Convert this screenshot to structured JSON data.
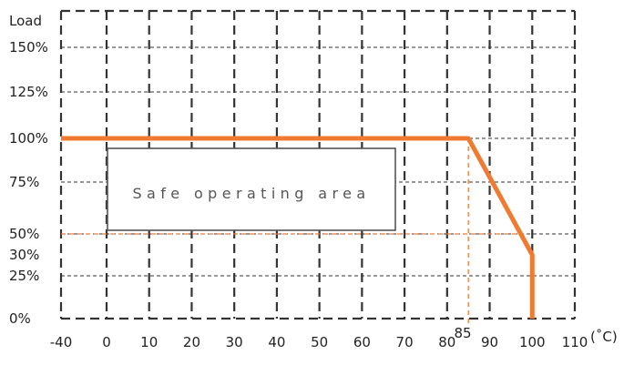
{
  "chart_data": {
    "type": "line",
    "ylabel": "Load",
    "xunit": "(˚C)",
    "x_ticks": [
      -40,
      0,
      10,
      20,
      30,
      40,
      50,
      60,
      70,
      80,
      90,
      100,
      110
    ],
    "x_tick_labels": [
      "-40",
      "0",
      "10",
      "20",
      "30",
      "40",
      "50",
      "60",
      "70",
      "80",
      "90",
      "100",
      "110"
    ],
    "y_ticks": [
      0,
      25,
      30,
      50,
      75,
      100,
      125,
      150
    ],
    "y_tick_labels": [
      "0%",
      "25%",
      "30%",
      "50%",
      "75%",
      "100%",
      "125%",
      "150%"
    ],
    "xlim": [
      -40,
      110
    ],
    "ylim": [
      0,
      175
    ],
    "grid": true,
    "series": [
      {
        "x": [
          -40,
          85,
          100,
          100
        ],
        "y": [
          100,
          100,
          30,
          0
        ],
        "color": "#f07a30"
      }
    ],
    "annotations": {
      "safe_area_label": "Safe operating area",
      "marker_x_value": 85,
      "marker_x_label": "85",
      "marker_y_value": 50
    },
    "colors": {
      "curve": "#f07a30",
      "grid": "#333333",
      "marker": "#f07a30"
    }
  }
}
